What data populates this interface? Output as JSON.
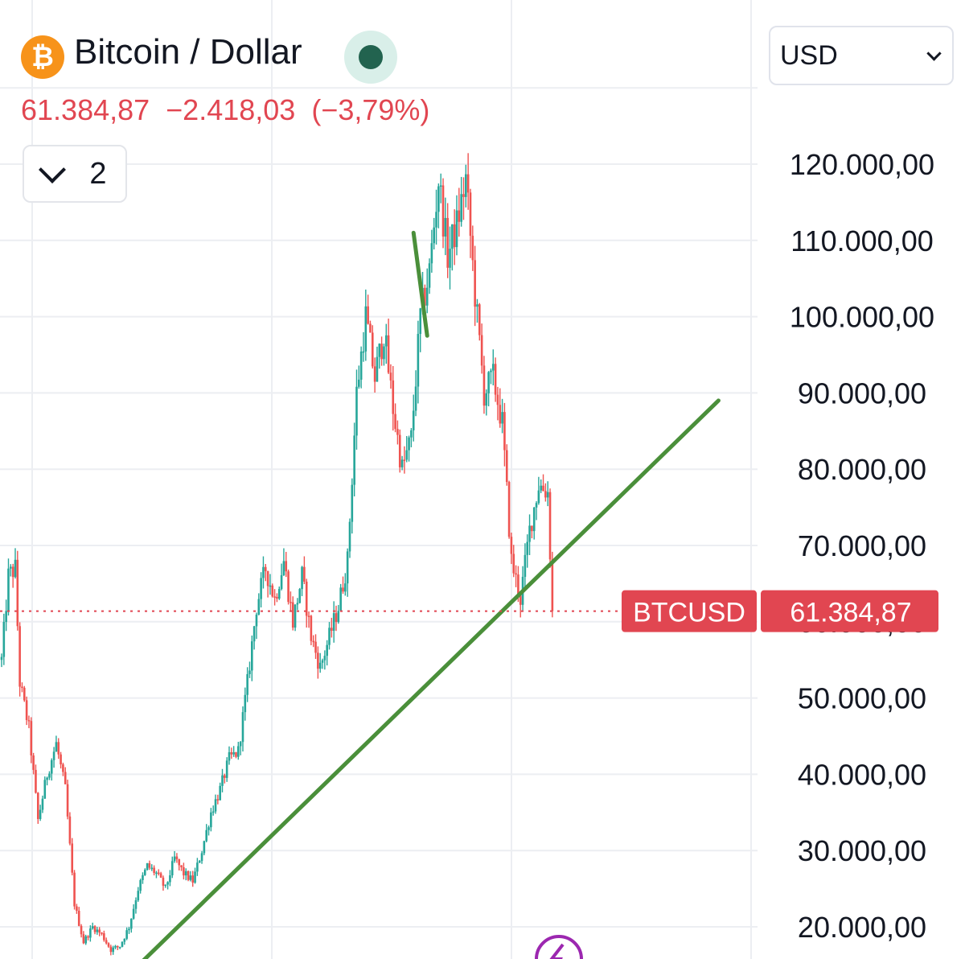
{
  "header": {
    "coin_icon": "bitcoin-icon",
    "coin_symbol": "₿",
    "title": "Bitcoin / Dollar",
    "status_color": "#22634f",
    "last_price": "61.384,87",
    "change": "−2.418,03",
    "change_pct": "(−3,79%)",
    "indicators_count": "2"
  },
  "currency_select": {
    "value": "USD"
  },
  "colors": {
    "up": "#26a69a",
    "down": "#ef5350",
    "price_tag": "#e14651",
    "trendline": "#4a8f3a",
    "grid": "#eceef2"
  },
  "chart_data": {
    "type": "candlestick",
    "symbol": "BTCUSD",
    "last_price": 61384.87,
    "last_price_label": "61.384,87",
    "y_axis": {
      "min": 16000,
      "max": 126000,
      "ticks": [
        20000,
        30000,
        40000,
        50000,
        60000,
        70000,
        80000,
        90000,
        100000,
        110000,
        120000
      ],
      "tick_labels": [
        "20.000,00",
        "30.000,00",
        "40.000,00",
        "50.000,00",
        "60.000,00",
        "70.000,00",
        "80.000,00",
        "90.000,00",
        "100.000,00",
        "110.000,00",
        "120.000,00"
      ],
      "side": "right"
    },
    "grid": true,
    "price_waypoints": [
      [
        0,
        55000
      ],
      [
        3,
        66000
      ],
      [
        6,
        67000
      ],
      [
        8,
        52000
      ],
      [
        12,
        46000
      ],
      [
        16,
        34000
      ],
      [
        20,
        40000
      ],
      [
        24,
        44000
      ],
      [
        28,
        38000
      ],
      [
        32,
        23000
      ],
      [
        36,
        18000
      ],
      [
        40,
        20000
      ],
      [
        44,
        19000
      ],
      [
        48,
        17000
      ],
      [
        52,
        17500
      ],
      [
        56,
        20000
      ],
      [
        60,
        25000
      ],
      [
        64,
        28000
      ],
      [
        68,
        27000
      ],
      [
        72,
        25000
      ],
      [
        76,
        29000
      ],
      [
        80,
        27000
      ],
      [
        84,
        26000
      ],
      [
        88,
        30000
      ],
      [
        92,
        35000
      ],
      [
        96,
        38000
      ],
      [
        100,
        42000
      ],
      [
        104,
        43000
      ],
      [
        108,
        52000
      ],
      [
        112,
        62000
      ],
      [
        116,
        67000
      ],
      [
        120,
        63000
      ],
      [
        124,
        68000
      ],
      [
        128,
        60000
      ],
      [
        132,
        66000
      ],
      [
        136,
        58000
      ],
      [
        140,
        54000
      ],
      [
        144,
        58000
      ],
      [
        148,
        62000
      ],
      [
        152,
        68000
      ],
      [
        156,
        90000
      ],
      [
        160,
        100000
      ],
      [
        164,
        92000
      ],
      [
        168,
        98000
      ],
      [
        172,
        88000
      ],
      [
        176,
        80000
      ],
      [
        180,
        84000
      ],
      [
        184,
        100000
      ],
      [
        188,
        106000
      ],
      [
        192,
        118000
      ],
      [
        196,
        108000
      ],
      [
        200,
        112000
      ],
      [
        204,
        118000
      ],
      [
        208,
        103000
      ],
      [
        212,
        90000
      ],
      [
        216,
        92000
      ],
      [
        220,
        86000
      ],
      [
        224,
        68000
      ],
      [
        228,
        63000
      ],
      [
        232,
        72000
      ],
      [
        236,
        78000
      ],
      [
        240,
        77000
      ],
      [
        242,
        61385
      ]
    ],
    "trendlines": [
      {
        "from": [
          62,
          15500
        ],
        "to": [
          315,
          89000
        ]
      },
      {
        "from": [
          181,
          111000
        ],
        "to": [
          187,
          97500
        ]
      }
    ]
  }
}
